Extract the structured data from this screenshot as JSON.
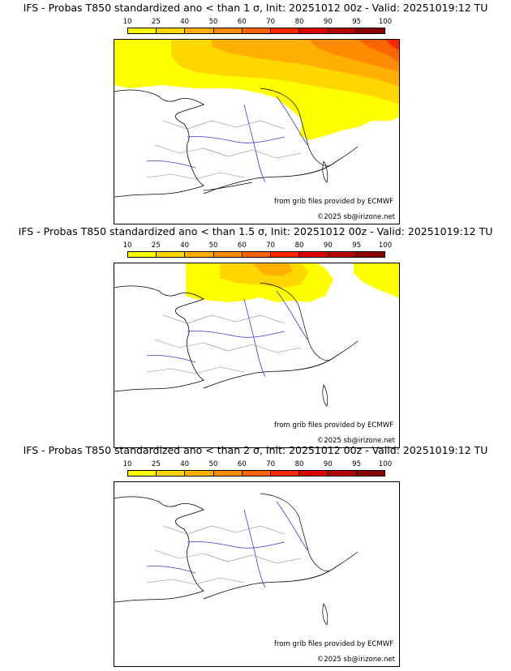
{
  "colorbar": {
    "ticks": [
      "10",
      "25",
      "40",
      "50",
      "60",
      "70",
      "80",
      "90",
      "95",
      "100"
    ],
    "colors": [
      "#ffff00",
      "#ffd700",
      "#ffb000",
      "#ff8c00",
      "#ff6400",
      "#ff2800",
      "#dc0000",
      "#b40000",
      "#8c0000"
    ]
  },
  "panels": [
    {
      "title": "IFS - Probas T850  standardized ano < than 1 σ, Init: 20251012 00z - Valid: 20251019:12 TU",
      "credit_line1": "from grib files provided by ECMWF",
      "credit_line2": "©2025 sb@irizone.net"
    },
    {
      "title": "IFS - Probas T850  standardized ano < than 1.5 σ, Init: 20251012 00z - Valid: 20251019:12 TU",
      "credit_line1": "from grib files provided by ECMWF",
      "credit_line2": "©2025 sb@irizone.net"
    },
    {
      "title": "IFS - Probas T850  standardized ano < than 2 σ, Init: 20251012 00z - Valid: 20251019:12 TU",
      "credit_line1": "from grib files provided by ECMWF",
      "credit_line2": "©2025 sb@irizone.net"
    }
  ]
}
